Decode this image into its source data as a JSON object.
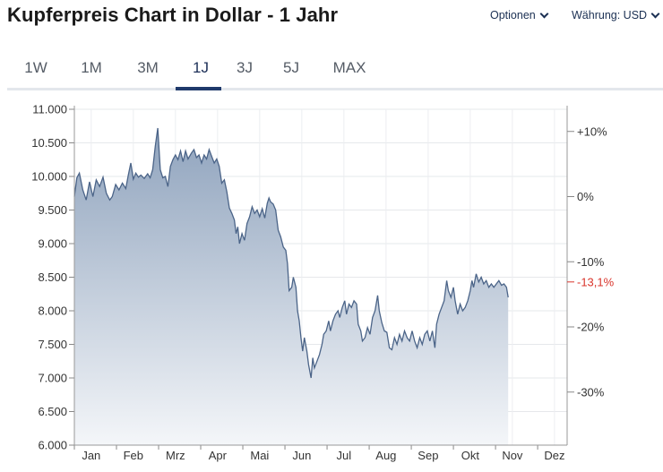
{
  "header": {
    "title": "Kupferpreis Chart in Dollar - 1 Jahr",
    "options_label": "Optionen",
    "currency_label": "Währung: USD"
  },
  "tabs": [
    {
      "label": "1W",
      "active": false
    },
    {
      "label": "1M",
      "active": false
    },
    {
      "label": "3M",
      "active": false
    },
    {
      "label": "1J",
      "active": true
    },
    {
      "label": "3J",
      "active": false
    },
    {
      "label": "5J",
      "active": false
    },
    {
      "label": "MAX",
      "active": false
    }
  ],
  "chart_data": {
    "type": "area",
    "title": "",
    "xlabel": "",
    "ylabel": "",
    "ylim": [
      6000,
      11000
    ],
    "y_ticks": [
      "11.000",
      "10.500",
      "10.000",
      "9.500",
      "9.000",
      "8.500",
      "8.000",
      "7.500",
      "7.000",
      "6.500",
      "6.000"
    ],
    "y_tick_values": [
      11000,
      10500,
      10000,
      9500,
      9000,
      8500,
      8000,
      7500,
      7000,
      6500,
      6000
    ],
    "right_axis": {
      "ticks": [
        "+10%",
        "0%",
        "-10%",
        "-20%",
        "-30%"
      ],
      "tick_values": [
        10,
        0,
        -10,
        -20,
        -30
      ],
      "current_label": "-13,1%",
      "current_value": -13.1,
      "current_color": "#d9342b"
    },
    "x_ticks": [
      "Jan",
      "Feb",
      "Mrz",
      "Apr",
      "Mai",
      "Jun",
      "Jul",
      "Aug",
      "Sep",
      "Okt",
      "Nov",
      "Dez"
    ],
    "x_range": [
      0,
      11.7
    ],
    "grid": true,
    "line_color": "#4b6488",
    "fill_top_color": "#8fa3bd",
    "fill_bottom_color": "#f4f6f9",
    "series": [
      {
        "points": [
          [
            0.0,
            9700
          ],
          [
            0.06,
            9980
          ],
          [
            0.12,
            10050
          ],
          [
            0.2,
            9800
          ],
          [
            0.28,
            9650
          ],
          [
            0.36,
            9920
          ],
          [
            0.44,
            9700
          ],
          [
            0.52,
            9950
          ],
          [
            0.6,
            9850
          ],
          [
            0.68,
            9990
          ],
          [
            0.76,
            9750
          ],
          [
            0.84,
            9650
          ],
          [
            0.9,
            9700
          ],
          [
            0.98,
            9880
          ],
          [
            1.06,
            9800
          ],
          [
            1.14,
            9900
          ],
          [
            1.22,
            9820
          ],
          [
            1.28,
            10020
          ],
          [
            1.34,
            10200
          ],
          [
            1.4,
            9960
          ],
          [
            1.46,
            10050
          ],
          [
            1.52,
            9990
          ],
          [
            1.58,
            10020
          ],
          [
            1.66,
            9970
          ],
          [
            1.74,
            10040
          ],
          [
            1.8,
            9980
          ],
          [
            1.86,
            10100
          ],
          [
            1.92,
            10450
          ],
          [
            1.98,
            10720
          ],
          [
            2.04,
            10100
          ],
          [
            2.1,
            9980
          ],
          [
            2.16,
            10000
          ],
          [
            2.22,
            9850
          ],
          [
            2.28,
            10150
          ],
          [
            2.34,
            10250
          ],
          [
            2.4,
            10320
          ],
          [
            2.46,
            10250
          ],
          [
            2.52,
            10380
          ],
          [
            2.58,
            10220
          ],
          [
            2.64,
            10380
          ],
          [
            2.7,
            10260
          ],
          [
            2.78,
            10350
          ],
          [
            2.84,
            10400
          ],
          [
            2.9,
            10280
          ],
          [
            2.96,
            10320
          ],
          [
            3.02,
            10200
          ],
          [
            3.08,
            10320
          ],
          [
            3.14,
            10260
          ],
          [
            3.2,
            10400
          ],
          [
            3.26,
            10300
          ],
          [
            3.32,
            10200
          ],
          [
            3.38,
            10260
          ],
          [
            3.44,
            10150
          ],
          [
            3.5,
            9900
          ],
          [
            3.56,
            9950
          ],
          [
            3.62,
            9770
          ],
          [
            3.68,
            9530
          ],
          [
            3.74,
            9450
          ],
          [
            3.8,
            9350
          ],
          [
            3.84,
            9150
          ],
          [
            3.88,
            9250
          ],
          [
            3.92,
            9000
          ],
          [
            3.98,
            9150
          ],
          [
            4.04,
            9050
          ],
          [
            4.1,
            9300
          ],
          [
            4.16,
            9400
          ],
          [
            4.22,
            9550
          ],
          [
            4.28,
            9450
          ],
          [
            4.34,
            9500
          ],
          [
            4.4,
            9400
          ],
          [
            4.46,
            9520
          ],
          [
            4.52,
            9380
          ],
          [
            4.58,
            9600
          ],
          [
            4.62,
            9680
          ],
          [
            4.66,
            9620
          ],
          [
            4.72,
            9590
          ],
          [
            4.78,
            9500
          ],
          [
            4.84,
            9200
          ],
          [
            4.9,
            9100
          ],
          [
            4.96,
            8950
          ],
          [
            5.02,
            8900
          ],
          [
            5.06,
            8700
          ],
          [
            5.1,
            8300
          ],
          [
            5.16,
            8350
          ],
          [
            5.2,
            8500
          ],
          [
            5.26,
            8350
          ],
          [
            5.3,
            8000
          ],
          [
            5.34,
            7850
          ],
          [
            5.38,
            7600
          ],
          [
            5.42,
            7400
          ],
          [
            5.46,
            7600
          ],
          [
            5.52,
            7400
          ],
          [
            5.56,
            7200
          ],
          [
            5.62,
            7000
          ],
          [
            5.66,
            7300
          ],
          [
            5.7,
            7150
          ],
          [
            5.76,
            7250
          ],
          [
            5.82,
            7350
          ],
          [
            5.88,
            7500
          ],
          [
            5.92,
            7650
          ],
          [
            5.98,
            7700
          ],
          [
            6.04,
            7850
          ],
          [
            6.08,
            7700
          ],
          [
            6.14,
            7850
          ],
          [
            6.2,
            7950
          ],
          [
            6.26,
            8000
          ],
          [
            6.3,
            7900
          ],
          [
            6.36,
            8050
          ],
          [
            6.42,
            8150
          ],
          [
            6.46,
            7950
          ],
          [
            6.52,
            8100
          ],
          [
            6.58,
            8050
          ],
          [
            6.64,
            8150
          ],
          [
            6.7,
            8100
          ],
          [
            6.74,
            7800
          ],
          [
            6.8,
            7700
          ],
          [
            6.84,
            7550
          ],
          [
            6.9,
            7600
          ],
          [
            6.96,
            7750
          ],
          [
            7.02,
            7650
          ],
          [
            7.08,
            7900
          ],
          [
            7.14,
            8000
          ],
          [
            7.2,
            8230
          ],
          [
            7.24,
            8000
          ],
          [
            7.3,
            7820
          ],
          [
            7.36,
            7700
          ],
          [
            7.42,
            7680
          ],
          [
            7.48,
            7450
          ],
          [
            7.54,
            7420
          ],
          [
            7.6,
            7600
          ],
          [
            7.66,
            7500
          ],
          [
            7.72,
            7650
          ],
          [
            7.78,
            7550
          ],
          [
            7.84,
            7700
          ],
          [
            7.9,
            7600
          ],
          [
            7.96,
            7550
          ],
          [
            8.02,
            7700
          ],
          [
            8.08,
            7550
          ],
          [
            8.14,
            7450
          ],
          [
            8.2,
            7600
          ],
          [
            8.26,
            7500
          ],
          [
            8.32,
            7650
          ],
          [
            8.38,
            7700
          ],
          [
            8.44,
            7550
          ],
          [
            8.5,
            7700
          ],
          [
            8.56,
            7450
          ],
          [
            8.6,
            7800
          ],
          [
            8.66,
            7950
          ],
          [
            8.72,
            8050
          ],
          [
            8.78,
            8150
          ],
          [
            8.84,
            8450
          ],
          [
            8.88,
            8300
          ],
          [
            8.94,
            8200
          ],
          [
            9.0,
            8350
          ],
          [
            9.04,
            8150
          ],
          [
            9.1,
            7950
          ],
          [
            9.16,
            8100
          ],
          [
            9.22,
            8000
          ],
          [
            9.28,
            8050
          ],
          [
            9.34,
            8150
          ],
          [
            9.4,
            8300
          ],
          [
            9.44,
            8450
          ],
          [
            9.48,
            8350
          ],
          [
            9.54,
            8550
          ],
          [
            9.6,
            8430
          ],
          [
            9.66,
            8500
          ],
          [
            9.72,
            8400
          ],
          [
            9.78,
            8450
          ],
          [
            9.84,
            8350
          ],
          [
            9.9,
            8400
          ],
          [
            9.96,
            8350
          ],
          [
            10.02,
            8400
          ],
          [
            10.08,
            8450
          ],
          [
            10.14,
            8380
          ],
          [
            10.2,
            8400
          ],
          [
            10.26,
            8350
          ],
          [
            10.3,
            8200
          ]
        ]
      }
    ]
  }
}
